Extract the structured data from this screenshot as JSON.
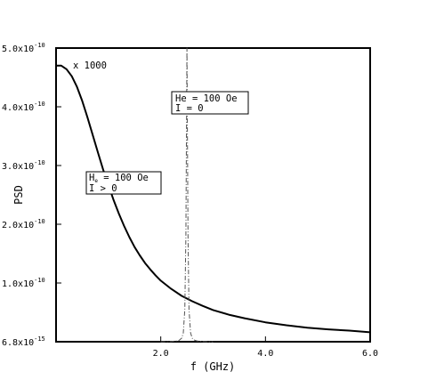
{
  "chart_data": {
    "type": "line",
    "xlabel": "f  (GHz)",
    "ylabel": "PSD",
    "xlim": [
      0,
      6.0
    ],
    "ylim": [
      6.8e-15,
      5e-10
    ],
    "x_ticks": [
      {
        "value": 2.0,
        "label": "2.0"
      },
      {
        "value": 4.0,
        "label": "4.0"
      },
      {
        "value": 6.0,
        "label": "6.0"
      }
    ],
    "y_ticks": [
      {
        "value": 6.8e-15,
        "mant": "6.8x10",
        "exp": "-15"
      },
      {
        "value": 1e-10,
        "mant": "1.0x10",
        "exp": "-10"
      },
      {
        "value": 2e-10,
        "mant": "2.0x10",
        "exp": "-10"
      },
      {
        "value": 3e-10,
        "mant": "3.0x10",
        "exp": "-10"
      },
      {
        "value": 4e-10,
        "mant": "4.0x10",
        "exp": "-10"
      },
      {
        "value": 5e-10,
        "mant": "5.0x10",
        "exp": "-10"
      }
    ],
    "grid": false,
    "series": [
      {
        "style": "solid",
        "color": "#000000",
        "x": [
          0.0,
          0.1,
          0.2,
          0.3,
          0.4,
          0.5,
          0.6,
          0.7,
          0.8,
          0.9,
          1.0,
          1.1,
          1.2,
          1.3,
          1.4,
          1.5,
          1.6,
          1.7,
          1.8,
          1.9,
          2.0,
          2.2,
          2.4,
          2.6,
          2.8,
          3.0,
          3.3,
          3.6,
          4.0,
          4.4,
          4.8,
          5.2,
          5.6,
          6.0
        ],
        "y": [
          4.7e-10,
          4.7e-10,
          4.64e-10,
          4.52e-10,
          4.34e-10,
          4.1e-10,
          3.82e-10,
          3.52e-10,
          3.22e-10,
          2.93e-10,
          2.67e-10,
          2.41e-10,
          2.18e-10,
          1.97e-10,
          1.78e-10,
          1.61e-10,
          1.47e-10,
          1.34e-10,
          1.23e-10,
          1.13e-10,
          1.04e-10,
          9e-11,
          7.8e-11,
          6.9e-11,
          6.1e-11,
          5.4e-11,
          4.6e-11,
          4e-11,
          3.3e-11,
          2.8e-11,
          2.4e-11,
          2.1e-11,
          1.9e-11,
          1.6e-11
        ]
      },
      {
        "style": "dash-dot",
        "color": "#555555",
        "x": [
          2.0,
          2.1,
          2.2,
          2.3,
          2.35,
          2.4,
          2.43,
          2.46,
          2.48,
          2.5,
          2.52,
          2.54,
          2.57,
          2.6,
          2.65,
          2.7,
          2.8,
          2.9,
          3.0
        ],
        "y": [
          0.0,
          2e-13,
          5e-13,
          1.2e-12,
          2.5e-12,
          6e-12,
          1.5e-11,
          5.5e-11,
          1.8e-10,
          5e-10,
          1.8e-10,
          5.5e-11,
          1.5e-11,
          6e-12,
          2.5e-12,
          1.2e-12,
          5e-13,
          2e-13,
          0.0
        ]
      }
    ],
    "annotations": [
      {
        "text": "x 1000"
      },
      {
        "lines": [
          "He = 100 Oe",
          "I = 0"
        ]
      },
      {
        "lines": [
          "H",
          "e",
          " = 100 Oe",
          "I > 0"
        ]
      }
    ]
  }
}
